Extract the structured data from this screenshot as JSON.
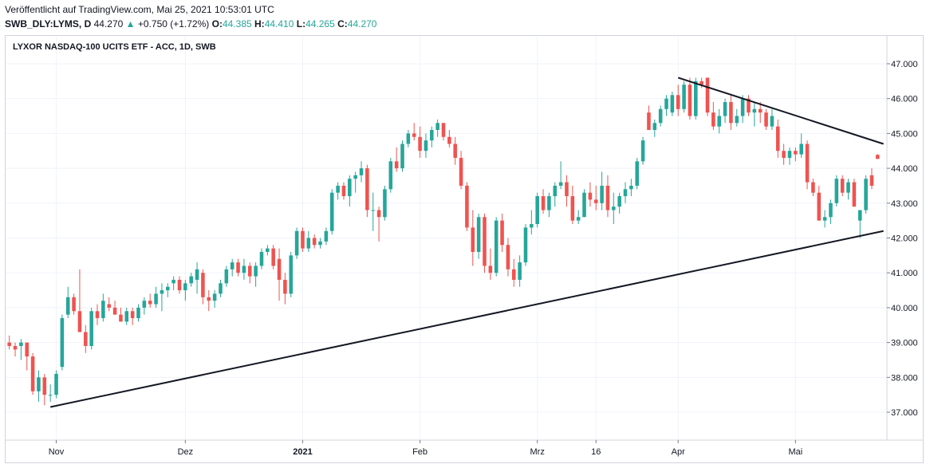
{
  "header": {
    "published": "Veröffentlicht auf TradingView.com, Mai 25, 2021 10:53:01 UTC",
    "symbol": "SWB_DLY:LYMS, D",
    "last": "44.270",
    "change_arrow": "▲",
    "change": "+0.750 (+1.72%)",
    "o_label": "O:",
    "o_value": "44.385",
    "h_label": "H:",
    "h_value": "44.410",
    "l_label": "L:",
    "l_value": "44.265",
    "c_label": "C:",
    "c_value": "44.270"
  },
  "colors": {
    "up": "#26a69a",
    "down": "#ef5350",
    "grid": "#f0f3fa",
    "trendline": "#131722"
  },
  "chart_data": {
    "type": "candlestick",
    "title": "LYXOR NASDAQ-100 UCITS ETF - ACC, 1D, SWB",
    "ylim": [
      36.2,
      47.8
    ],
    "yticks": [
      37,
      38,
      39,
      40,
      41,
      42,
      43,
      44,
      45,
      46,
      47
    ],
    "ytick_labels": [
      "37.000",
      "38.000",
      "39.000",
      "40.000",
      "41.000",
      "42.000",
      "43.000",
      "44.000",
      "45.000",
      "46.000",
      "47.000"
    ],
    "xtick_labels": [
      {
        "label": "Nov",
        "index": 8,
        "bold": false
      },
      {
        "label": "Dez",
        "index": 30,
        "bold": false
      },
      {
        "label": "2021",
        "index": 50,
        "bold": true
      },
      {
        "label": "Feb",
        "index": 70,
        "bold": false
      },
      {
        "label": "Mrz",
        "index": 90,
        "bold": false
      },
      {
        "label": "16",
        "index": 100,
        "bold": false
      },
      {
        "label": "Apr",
        "index": 114,
        "bold": false
      },
      {
        "label": "Mai",
        "index": 134,
        "bold": false
      }
    ],
    "grid": true,
    "candles_ohlc": [
      [
        39.0,
        39.2,
        38.8,
        38.9
      ],
      [
        38.9,
        39.0,
        38.6,
        38.8
      ],
      [
        38.9,
        39.1,
        38.5,
        39.0
      ],
      [
        39.0,
        39.0,
        38.2,
        38.6
      ],
      [
        38.6,
        38.7,
        37.5,
        37.6
      ],
      [
        37.6,
        38.2,
        37.3,
        38.0
      ],
      [
        38.0,
        38.1,
        37.2,
        37.5
      ],
      [
        37.5,
        37.8,
        37.3,
        37.5
      ],
      [
        37.5,
        38.2,
        37.4,
        38.1
      ],
      [
        38.3,
        39.8,
        38.2,
        39.7
      ],
      [
        39.8,
        40.6,
        39.7,
        40.3
      ],
      [
        40.3,
        40.4,
        39.8,
        39.9
      ],
      [
        39.9,
        41.1,
        39.3,
        39.3
      ],
      [
        39.3,
        39.5,
        38.7,
        38.9
      ],
      [
        38.9,
        40.0,
        38.8,
        39.9
      ],
      [
        39.9,
        40.1,
        39.5,
        39.7
      ],
      [
        39.7,
        40.4,
        39.6,
        40.2
      ],
      [
        40.1,
        40.3,
        39.9,
        40.0
      ],
      [
        40.0,
        40.2,
        39.8,
        39.8
      ],
      [
        39.8,
        40.0,
        39.6,
        39.6
      ],
      [
        39.6,
        40.0,
        39.5,
        39.9
      ],
      [
        39.9,
        40.0,
        39.5,
        39.7
      ],
      [
        39.7,
        40.1,
        39.6,
        40.0
      ],
      [
        40.0,
        40.3,
        39.8,
        40.2
      ],
      [
        40.2,
        40.4,
        40.0,
        40.1
      ],
      [
        40.1,
        40.6,
        40.0,
        40.4
      ],
      [
        40.4,
        40.7,
        39.9,
        40.5
      ],
      [
        40.5,
        40.7,
        40.3,
        40.6
      ],
      [
        40.7,
        40.9,
        40.5,
        40.8
      ],
      [
        40.8,
        40.9,
        40.4,
        40.5
      ],
      [
        40.5,
        40.8,
        40.2,
        40.7
      ],
      [
        40.7,
        41.0,
        40.6,
        40.9
      ],
      [
        40.8,
        41.3,
        40.4,
        41.1
      ],
      [
        41.0,
        41.1,
        40.1,
        40.3
      ],
      [
        40.3,
        40.5,
        39.9,
        40.2
      ],
      [
        40.2,
        40.5,
        40.0,
        40.4
      ],
      [
        40.4,
        40.8,
        40.3,
        40.7
      ],
      [
        40.7,
        41.2,
        40.6,
        41.1
      ],
      [
        41.1,
        41.4,
        40.9,
        41.3
      ],
      [
        41.3,
        41.4,
        40.9,
        41.0
      ],
      [
        41.0,
        41.4,
        40.8,
        41.2
      ],
      [
        41.2,
        41.3,
        40.7,
        40.9
      ],
      [
        40.9,
        41.3,
        40.6,
        41.2
      ],
      [
        41.2,
        41.7,
        41.1,
        41.6
      ],
      [
        41.6,
        41.8,
        41.5,
        41.7
      ],
      [
        41.7,
        41.8,
        41.1,
        41.2
      ],
      [
        41.4,
        41.7,
        40.2,
        40.8
      ],
      [
        40.8,
        41.0,
        40.1,
        40.4
      ],
      [
        40.4,
        41.6,
        40.3,
        41.5
      ],
      [
        41.5,
        42.3,
        41.4,
        42.2
      ],
      [
        42.2,
        42.3,
        41.6,
        41.7
      ],
      [
        41.7,
        42.2,
        41.6,
        42.0
      ],
      [
        42.0,
        42.1,
        41.7,
        41.8
      ],
      [
        41.8,
        42.0,
        41.7,
        41.9
      ],
      [
        41.9,
        42.3,
        41.8,
        42.2
      ],
      [
        42.2,
        43.4,
        42.1,
        43.3
      ],
      [
        43.3,
        43.6,
        43.1,
        43.5
      ],
      [
        43.5,
        43.6,
        43.1,
        43.2
      ],
      [
        43.2,
        43.8,
        42.9,
        43.7
      ],
      [
        43.7,
        43.9,
        43.3,
        43.8
      ],
      [
        43.8,
        44.2,
        43.6,
        44.0
      ],
      [
        44.0,
        44.1,
        42.6,
        42.8
      ],
      [
        42.8,
        43.3,
        42.2,
        42.8
      ],
      [
        42.8,
        42.9,
        41.9,
        42.6
      ],
      [
        42.6,
        43.5,
        42.5,
        43.4
      ],
      [
        43.4,
        44.3,
        43.3,
        44.2
      ],
      [
        44.2,
        44.6,
        43.9,
        44.0
      ],
      [
        44.0,
        44.8,
        43.9,
        44.7
      ],
      [
        44.7,
        45.1,
        44.6,
        45.0
      ],
      [
        45.0,
        45.3,
        44.8,
        44.9
      ],
      [
        44.9,
        45.2,
        44.3,
        44.5
      ],
      [
        44.5,
        45.0,
        44.3,
        44.8
      ],
      [
        44.8,
        45.2,
        44.6,
        45.1
      ],
      [
        45.1,
        45.4,
        44.9,
        45.3
      ],
      [
        45.3,
        45.3,
        44.8,
        44.9
      ],
      [
        44.9,
        45.1,
        44.6,
        44.7
      ],
      [
        44.7,
        44.9,
        44.1,
        44.3
      ],
      [
        44.3,
        44.5,
        43.4,
        43.5
      ],
      [
        43.5,
        43.6,
        42.2,
        42.3
      ],
      [
        42.3,
        42.8,
        41.2,
        41.6
      ],
      [
        41.6,
        42.7,
        41.4,
        42.6
      ],
      [
        42.6,
        42.7,
        41.0,
        41.2
      ],
      [
        41.2,
        41.7,
        40.8,
        41.0
      ],
      [
        41.0,
        42.6,
        40.9,
        42.5
      ],
      [
        42.5,
        42.7,
        41.6,
        41.8
      ],
      [
        41.8,
        42.0,
        40.9,
        41.1
      ],
      [
        41.1,
        41.4,
        40.6,
        40.8
      ],
      [
        40.8,
        41.5,
        40.6,
        41.3
      ],
      [
        41.3,
        42.4,
        41.2,
        42.3
      ],
      [
        42.3,
        42.8,
        42.1,
        42.4
      ],
      [
        42.4,
        43.3,
        42.3,
        43.2
      ],
      [
        43.2,
        43.4,
        42.7,
        42.8
      ],
      [
        42.8,
        43.3,
        42.6,
        43.2
      ],
      [
        43.2,
        43.6,
        42.9,
        43.5
      ],
      [
        43.5,
        44.2,
        43.4,
        43.6
      ],
      [
        43.6,
        43.8,
        42.9,
        43.2
      ],
      [
        43.2,
        43.5,
        42.4,
        42.5
      ],
      [
        42.5,
        42.8,
        42.4,
        42.6
      ],
      [
        42.6,
        43.4,
        42.6,
        43.3
      ],
      [
        43.3,
        43.6,
        42.9,
        43.1
      ],
      [
        43.1,
        43.5,
        42.8,
        43.0
      ],
      [
        43.0,
        43.9,
        42.8,
        43.5
      ],
      [
        43.5,
        43.8,
        42.6,
        42.8
      ],
      [
        42.8,
        43.3,
        42.4,
        42.9
      ],
      [
        42.9,
        43.3,
        42.7,
        43.2
      ],
      [
        43.2,
        43.6,
        43.0,
        43.4
      ],
      [
        43.4,
        43.7,
        43.2,
        43.5
      ],
      [
        43.5,
        44.3,
        43.4,
        44.2
      ],
      [
        44.2,
        44.9,
        44.1,
        44.8
      ],
      [
        45.6,
        45.8,
        45.1,
        45.1
      ],
      [
        45.1,
        45.4,
        44.9,
        45.3
      ],
      [
        45.3,
        45.8,
        45.2,
        45.7
      ],
      [
        45.7,
        46.1,
        45.5,
        46.0
      ],
      [
        45.6,
        46.2,
        45.5,
        46.1
      ],
      [
        46.1,
        46.4,
        45.5,
        45.7
      ],
      [
        45.7,
        46.5,
        45.6,
        46.4
      ],
      [
        46.4,
        46.6,
        45.4,
        45.5
      ],
      [
        45.5,
        46.6,
        45.4,
        46.5
      ],
      [
        46.5,
        46.6,
        46.3,
        46.4
      ],
      [
        46.6,
        46.6,
        45.5,
        45.6
      ],
      [
        45.6,
        45.9,
        45.1,
        45.2
      ],
      [
        45.2,
        45.7,
        45.0,
        45.5
      ],
      [
        45.5,
        46.0,
        45.3,
        45.9
      ],
      [
        45.9,
        46.1,
        45.1,
        45.3
      ],
      [
        45.3,
        45.7,
        45.2,
        45.5
      ],
      [
        45.5,
        46.1,
        45.3,
        46.0
      ],
      [
        46.0,
        46.1,
        45.5,
        45.6
      ],
      [
        45.6,
        45.9,
        45.2,
        45.7
      ],
      [
        45.7,
        45.9,
        45.3,
        45.6
      ],
      [
        45.6,
        45.7,
        45.1,
        45.2
      ],
      [
        45.2,
        45.7,
        45.1,
        45.5
      ],
      [
        45.2,
        45.4,
        44.3,
        44.5
      ],
      [
        44.5,
        44.7,
        44.1,
        44.3
      ],
      [
        44.3,
        44.6,
        44.1,
        44.5
      ],
      [
        44.5,
        44.6,
        44.2,
        44.4
      ],
      [
        44.4,
        45.0,
        44.3,
        44.7
      ],
      [
        44.7,
        44.8,
        43.4,
        43.6
      ],
      [
        43.6,
        43.7,
        43.2,
        43.3
      ],
      [
        43.3,
        43.5,
        42.5,
        42.5
      ],
      [
        42.5,
        42.8,
        42.3,
        42.6
      ],
      [
        42.6,
        43.1,
        42.4,
        43.0
      ],
      [
        43.0,
        43.8,
        42.9,
        43.7
      ],
      [
        43.7,
        43.8,
        43.2,
        43.3
      ],
      [
        43.3,
        43.7,
        43.1,
        43.6
      ],
      [
        43.6,
        43.7,
        42.9,
        42.9
      ],
      [
        42.5,
        42.8,
        42.0,
        42.8
      ],
      [
        42.8,
        43.8,
        42.7,
        43.7
      ],
      [
        43.8,
        44.0,
        43.4,
        43.5
      ],
      [
        44.385,
        44.41,
        44.265,
        44.27
      ]
    ],
    "trendlines": [
      {
        "from": {
          "index": 7,
          "price": 37.15
        },
        "to": {
          "index": 149,
          "price": 42.2
        }
      },
      {
        "from": {
          "index": 114,
          "price": 46.6
        },
        "to": {
          "index": 149,
          "price": 44.7
        }
      }
    ]
  }
}
